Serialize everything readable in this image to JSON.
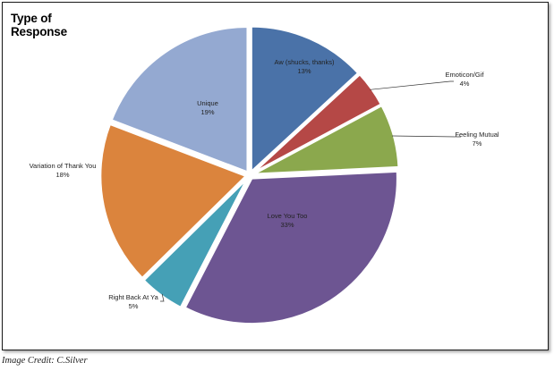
{
  "chart_data": {
    "type": "pie",
    "title": "Type of Response",
    "slices": [
      {
        "label": "Aw (shucks, thanks)",
        "value": 13,
        "value_label": "13%",
        "color": "#4a72a8"
      },
      {
        "label": "Emoticon/Gif",
        "value": 4,
        "value_label": "4%",
        "color": "#b54846"
      },
      {
        "label": "Feeling Mutual",
        "value": 7,
        "value_label": "7%",
        "color": "#8ba84d"
      },
      {
        "label": "Love You Too",
        "value": 33,
        "value_label": "33%",
        "color": "#6d5592"
      },
      {
        "label": "Right Back At Ya",
        "value": 5,
        "value_label": "5%",
        "color": "#45a0b6"
      },
      {
        "label": "Variation of Thank You",
        "value": 18,
        "value_label": "18%",
        "color": "#db843d"
      },
      {
        "label": "Unique",
        "value": 19,
        "value_label": "19%",
        "color": "#94a9d1"
      }
    ]
  },
  "credit": "Image Credit: C.Silver"
}
